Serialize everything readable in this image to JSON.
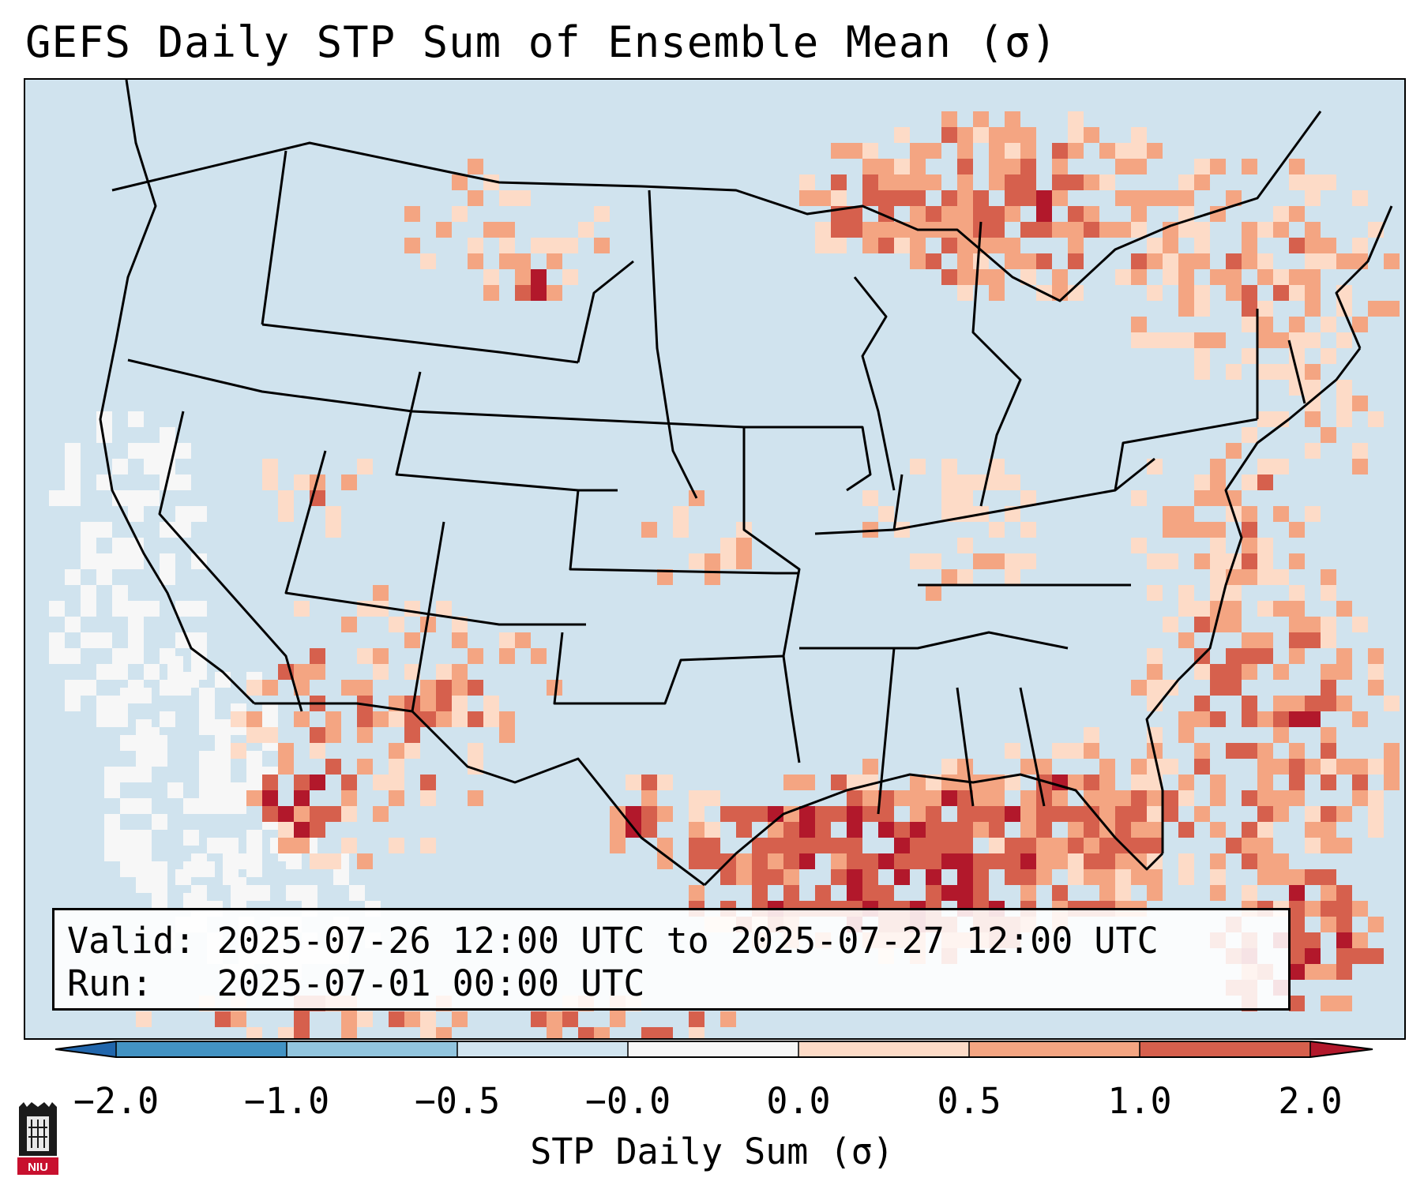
{
  "title": "GEFS Daily STP Sum of Ensemble Mean (σ)",
  "info": {
    "valid_line": "Valid: 2025-07-26 12:00 UTC to 2025-07-27 12:00 UTC",
    "run_line": "Run:   2025-07-01 00:00 UTC"
  },
  "colorbar": {
    "label": "STP Daily Sum (σ)",
    "ticks": [
      "−2.0",
      "−1.0",
      "−0.5",
      "−0.0",
      "0.0",
      "0.5",
      "1.0",
      "2.0"
    ],
    "colors": [
      "#4393c3",
      "#92c5de",
      "#d1e5f0",
      "#f7f7f7",
      "#fddbc7",
      "#f4a582",
      "#d6604d"
    ],
    "under_color": "#2166ac",
    "over_color": "#b2182b",
    "background_color": "#d0e3ee"
  },
  "logo": {
    "text": "NIU"
  }
}
